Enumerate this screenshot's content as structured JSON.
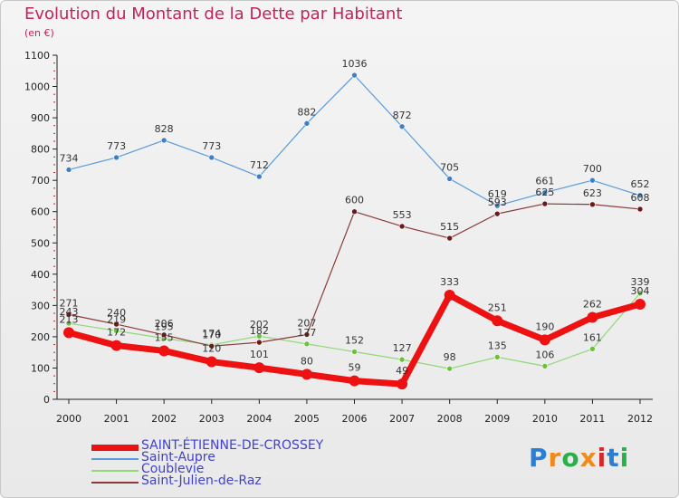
{
  "header": {
    "title": "Evolution du Montant de la Dette par Habitant",
    "subtitle": "(en €)"
  },
  "logo": {
    "text": "Proxiti",
    "colors": [
      "#2a7fd4",
      "#f08a18",
      "#2ab04a",
      "#f08a18",
      "#d42a2a",
      "#2a7fd4",
      "#2ab04a"
    ]
  },
  "chart_data": {
    "type": "line",
    "x": [
      "2000",
      "2001",
      "2002",
      "2003",
      "2004",
      "2005",
      "2006",
      "2007",
      "2008",
      "2009",
      "2010",
      "2011",
      "2012"
    ],
    "ylim": [
      0,
      1100
    ],
    "yticks": [
      "0",
      "100",
      "200",
      "300",
      "400",
      "500",
      "600",
      "700",
      "800",
      "900",
      "1000",
      "1100"
    ],
    "grid": false,
    "legend_position": "bottom-left",
    "series": [
      {
        "name": "Saint-Aupre",
        "color": "#5a9bd8",
        "width": 1.2,
        "marker": "#3f7fc4",
        "values": [
          734,
          773,
          828,
          773,
          712,
          882,
          1036,
          872,
          705,
          619,
          661,
          700,
          652
        ]
      },
      {
        "name": "Coublevie",
        "color": "#90d878",
        "width": 1.2,
        "marker": "#6cc040",
        "values": [
          243,
          219,
          195,
          174,
          202,
          177,
          152,
          127,
          98,
          135,
          106,
          161,
          339
        ]
      },
      {
        "name": "Saint-Julien-de-Raz",
        "color": "#8a3a3a",
        "width": 1.2,
        "marker": "#6a1a1a",
        "values": [
          271,
          240,
          206,
          170,
          182,
          207,
          600,
          553,
          515,
          593,
          625,
          623,
          608
        ]
      },
      {
        "name": "SAINT-ÉTIENNE-DE-CROSSEY",
        "color": "#ee1111",
        "width": 7,
        "marker": "#ee1111",
        "values": [
          213,
          172,
          155,
          120,
          101,
          80,
          59,
          49,
          333,
          251,
          190,
          262,
          304
        ]
      }
    ],
    "legend_order": [
      3,
      0,
      1,
      2
    ]
  }
}
